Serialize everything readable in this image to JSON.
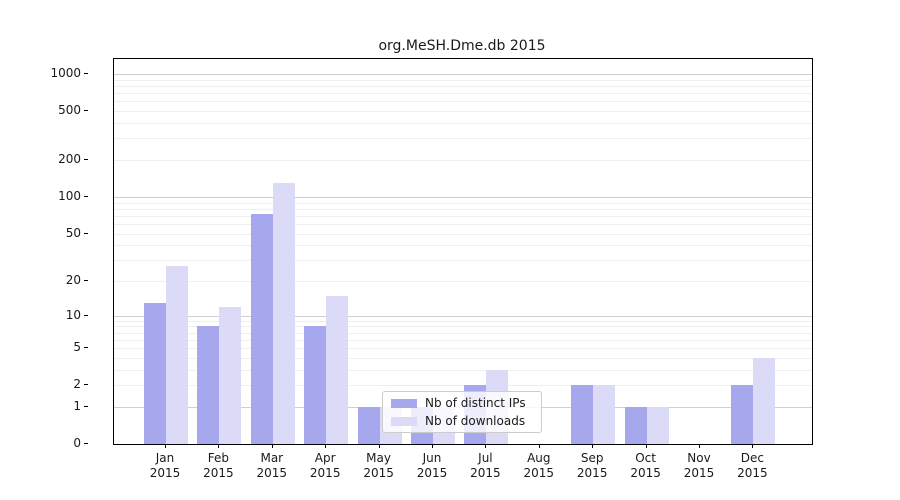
{
  "chart_data": {
    "type": "bar",
    "title": "org.MeSH.Dme.db 2015",
    "categories": [
      "Jan",
      "Feb",
      "Mar",
      "Apr",
      "May",
      "Jun",
      "Jul",
      "Aug",
      "Sep",
      "Oct",
      "Nov",
      "Dec"
    ],
    "x_sublabel": "2015",
    "series": [
      {
        "name": "Nb of distinct IPs",
        "color": "#a7a7ee",
        "values": [
          13,
          8,
          72,
          8,
          1,
          1,
          2,
          0,
          2,
          1,
          0,
          2
        ]
      },
      {
        "name": "Nb of downloads",
        "color": "#dbdbf8",
        "values": [
          27,
          12,
          130,
          15,
          1,
          1,
          3,
          0,
          2,
          1,
          0,
          4
        ]
      }
    ],
    "y_axis": {
      "scale": "log10(value+1)",
      "ticks": [
        0,
        1,
        2,
        5,
        10,
        20,
        50,
        100,
        200,
        500,
        1000
      ],
      "major_gridlines": [
        1,
        10,
        100,
        1000
      ],
      "minor_gridlines": [
        2,
        3,
        4,
        5,
        6,
        7,
        8,
        9,
        20,
        30,
        40,
        50,
        60,
        70,
        80,
        90,
        200,
        300,
        400,
        500,
        600,
        700,
        800,
        900
      ],
      "ylim_top_log_units": 3.122
    },
    "xlabel": "",
    "ylabel": "",
    "legend": {
      "position": "inside-bottom-center",
      "frame": true
    },
    "grid": true
  },
  "colors": {
    "background": "#ffffff",
    "axis": "#000000",
    "major_grid": "#cfcfcf",
    "minor_grid": "#efefef",
    "text": "#1a1a1a",
    "legend_border": "#cccccc"
  }
}
